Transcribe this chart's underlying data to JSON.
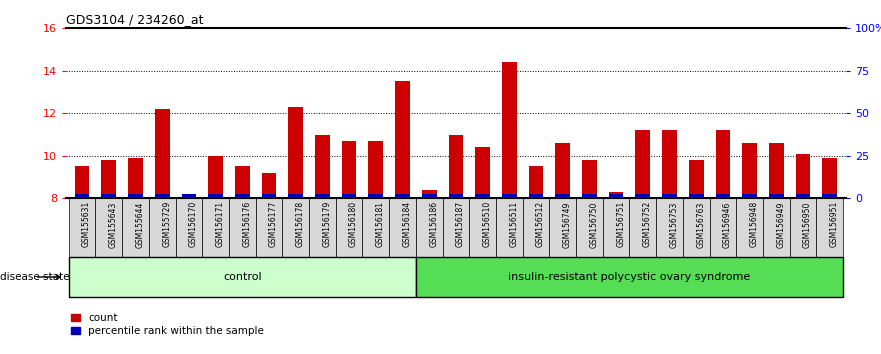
{
  "title": "GDS3104 / 234260_at",
  "samples": [
    "GSM155631",
    "GSM155643",
    "GSM155644",
    "GSM155729",
    "GSM156170",
    "GSM156171",
    "GSM156176",
    "GSM156177",
    "GSM156178",
    "GSM156179",
    "GSM156180",
    "GSM156181",
    "GSM156184",
    "GSM156186",
    "GSM156187",
    "GSM156510",
    "GSM156511",
    "GSM156512",
    "GSM156749",
    "GSM156750",
    "GSM156751",
    "GSM156752",
    "GSM156753",
    "GSM156763",
    "GSM156946",
    "GSM156948",
    "GSM156949",
    "GSM156950",
    "GSM156951"
  ],
  "count_values": [
    9.5,
    9.8,
    9.9,
    12.2,
    8.2,
    10.0,
    9.5,
    9.2,
    12.3,
    11.0,
    10.7,
    10.7,
    13.5,
    8.4,
    11.0,
    10.4,
    14.4,
    9.5,
    10.6,
    9.8,
    8.3,
    11.2,
    11.2,
    9.8,
    11.2,
    10.6,
    10.6,
    10.1,
    9.9
  ],
  "percentile_values": [
    0.18,
    0.18,
    0.18,
    0.18,
    0.22,
    0.18,
    0.18,
    0.18,
    0.18,
    0.18,
    0.18,
    0.18,
    0.18,
    0.18,
    0.18,
    0.18,
    0.18,
    0.18,
    0.18,
    0.18,
    0.22,
    0.18,
    0.18,
    0.18,
    0.18,
    0.18,
    0.18,
    0.18,
    0.22
  ],
  "control_count": 13,
  "disease_label": "insulin-resistant polycystic ovary syndrome",
  "control_label": "control",
  "ylim_left": [
    8,
    16
  ],
  "ylim_right": [
    0,
    100
  ],
  "yticks_left": [
    8,
    10,
    12,
    14,
    16
  ],
  "yticks_right": [
    0,
    25,
    50,
    75,
    100
  ],
  "ytick_labels_right": [
    "0",
    "25",
    "50",
    "75",
    "100%"
  ],
  "bar_color_red": "#cc0000",
  "bar_color_blue": "#0000bb",
  "bg_color_plot": "#ffffff",
  "bg_color_xlabels": "#d8d8d8",
  "bg_color_control": "#ccffcc",
  "bg_color_disease": "#55dd55",
  "bar_width": 0.55,
  "base_value": 8.0
}
